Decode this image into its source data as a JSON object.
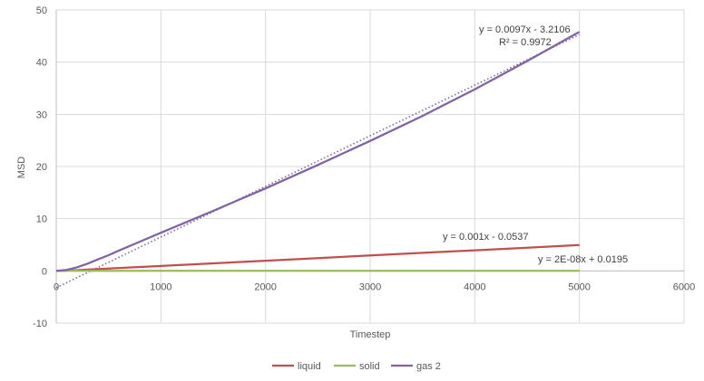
{
  "chart_data": {
    "type": "line",
    "xlabel": "Timestep",
    "ylabel": "MSD",
    "xlim": [
      0,
      6000
    ],
    "ylim": [
      -10,
      50
    ],
    "x_ticks": [
      0,
      1000,
      2000,
      3000,
      4000,
      5000,
      6000
    ],
    "y_ticks": [
      -10,
      0,
      10,
      20,
      30,
      40,
      50
    ],
    "grid": true,
    "legend_position": "bottom",
    "series": [
      {
        "name": "liquid",
        "color": "#c0504d",
        "x": [
          0,
          100,
          200,
          300,
          500,
          1000,
          1500,
          2000,
          2500,
          3000,
          3500,
          4000,
          4500,
          5000
        ],
        "y": [
          0,
          0.05,
          0.15,
          0.25,
          0.45,
          0.95,
          1.45,
          1.95,
          2.45,
          2.95,
          3.45,
          3.95,
          4.45,
          4.95
        ],
        "trendline": {
          "slope": 0.001,
          "intercept": -0.0537,
          "equation": "y = 0.001x - 0.0537"
        }
      },
      {
        "name": "solid",
        "color": "#9bbb59",
        "x": [
          0,
          1000,
          2000,
          3000,
          4000,
          5000
        ],
        "y": [
          0.02,
          0.02,
          0.02,
          0.02,
          0.02,
          0.02
        ],
        "trendline": {
          "slope": 2e-08,
          "intercept": 0.0195,
          "equation": "y = 2E-08x + 0.0195"
        }
      },
      {
        "name": "gas 2",
        "color": "#8064a2",
        "x": [
          0,
          100,
          200,
          300,
          400,
          500,
          600,
          800,
          1000,
          1500,
          2000,
          2500,
          3000,
          3500,
          4000,
          4500,
          5000
        ],
        "y": [
          0,
          0.2,
          0.7,
          1.4,
          2.2,
          3.0,
          3.9,
          5.6,
          7.3,
          11.5,
          15.8,
          20.3,
          24.9,
          29.7,
          34.8,
          40.2,
          45.8
        ],
        "trendline": {
          "slope": 0.0097,
          "intercept": -3.2106,
          "equation": "y = 0.0097x - 3.2106",
          "r2": "R² = 0.9972"
        }
      }
    ]
  }
}
